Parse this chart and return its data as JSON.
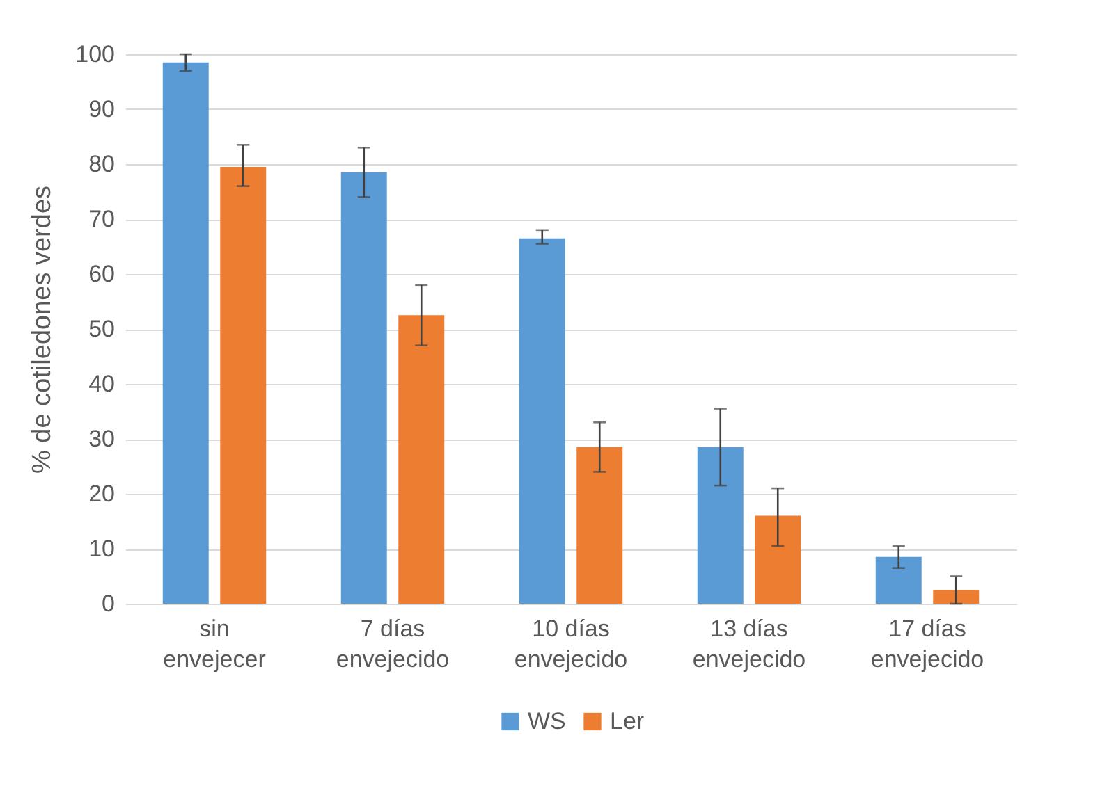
{
  "chart_data": {
    "type": "bar",
    "ylabel": "% de cotiledones verdes",
    "categories": [
      "sin envejecer",
      "7 días envejecido",
      "10 días envejecido",
      "13 días envejecido",
      "17 días envejecido"
    ],
    "series": [
      {
        "name": "WS",
        "color": "#5b9bd5",
        "values": [
          98.5,
          78.5,
          66.5,
          28.5,
          8.5
        ],
        "errors": [
          [
            97,
            100
          ],
          [
            74,
            83
          ],
          [
            65.5,
            68
          ],
          [
            21.5,
            35.5
          ],
          [
            6.5,
            10.5
          ]
        ]
      },
      {
        "name": "Ler",
        "color": "#ed7d31",
        "values": [
          79.5,
          52.5,
          28.5,
          16,
          2.5
        ],
        "errors": [
          [
            76,
            83.5
          ],
          [
            47,
            58
          ],
          [
            24,
            33
          ],
          [
            10.5,
            21
          ],
          [
            0,
            5
          ]
        ]
      }
    ],
    "ylim": [
      0,
      100
    ],
    "yticks": [
      0,
      10,
      20,
      30,
      40,
      50,
      60,
      70,
      80,
      90,
      100
    ],
    "grid": "y",
    "legend": "bottom"
  }
}
